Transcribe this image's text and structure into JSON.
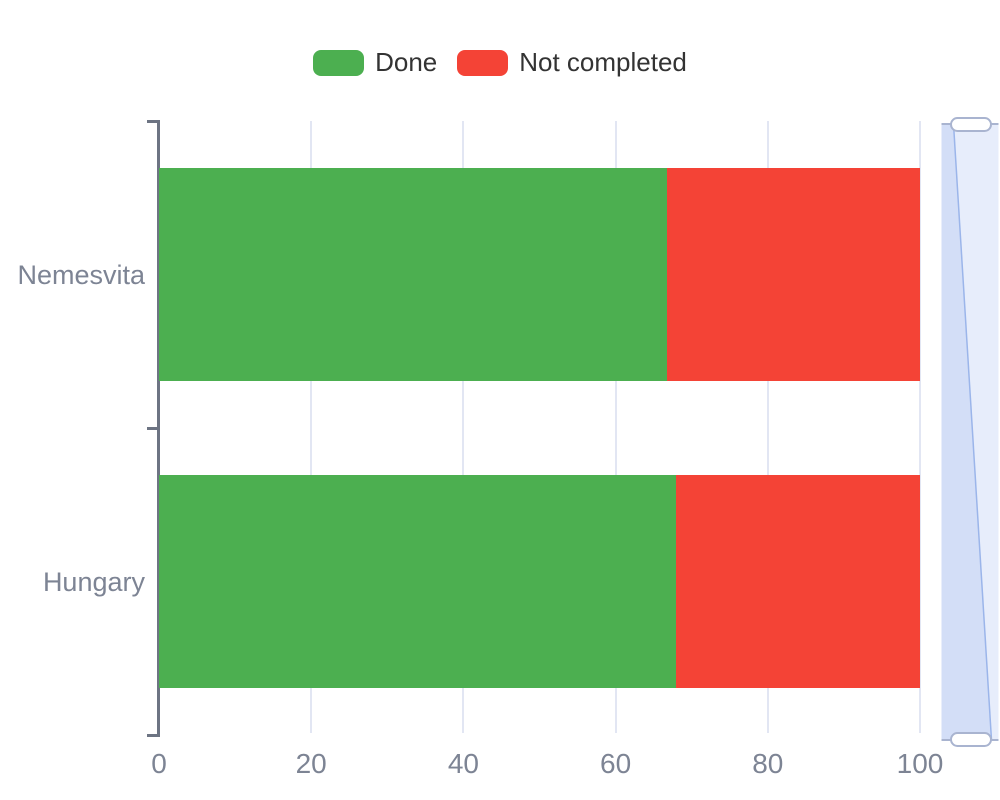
{
  "legend": {
    "text_color": "#333333",
    "items": [
      {
        "label": "Done",
        "color": "#4caf50"
      },
      {
        "label": "Not completed",
        "color": "#f44336"
      }
    ]
  },
  "chart_data": {
    "type": "bar",
    "orientation": "horizontal",
    "stacked": true,
    "categories": [
      "Nemesvita",
      "Hungary"
    ],
    "series": [
      {
        "name": "Done",
        "color": "#4caf50",
        "values": [
          66.7,
          67.9
        ]
      },
      {
        "name": "Not completed",
        "color": "#f44336",
        "values": [
          33.3,
          32.1
        ]
      }
    ],
    "xlim": [
      0,
      100
    ],
    "x_ticks": [
      0,
      20,
      40,
      60,
      80,
      100
    ],
    "grid": true,
    "legend_position": "top"
  },
  "axis": {
    "line_color": "#6d7483",
    "grid_color": "#e2e6f3",
    "label_color": "#7d8494"
  },
  "scrollbar": {
    "track_color": "#e7edfb",
    "selection_color": "#d3def7",
    "preview_line_color": "#9bb5ea",
    "border_color": "#a9b4d0",
    "grip_fill": "#ffffff"
  }
}
